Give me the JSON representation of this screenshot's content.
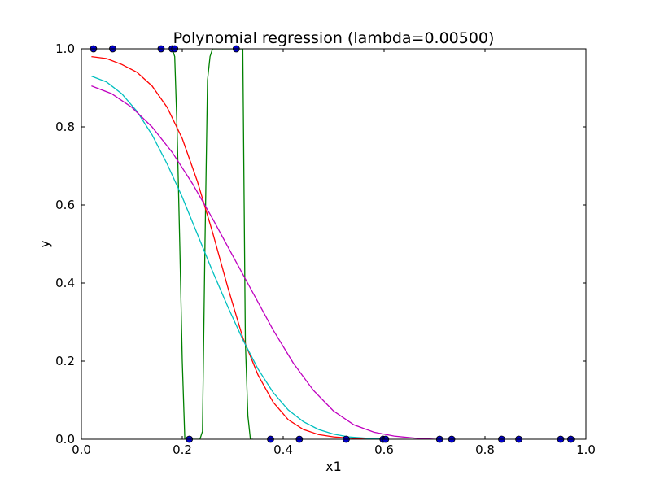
{
  "chart_data": {
    "type": "line",
    "title": "Polynomial regression (lambda=0.00500)",
    "xlabel": "x1",
    "ylabel": "y",
    "xlim": [
      0.0,
      1.0
    ],
    "ylim": [
      0.0,
      1.0
    ],
    "xticks": [
      "0.0",
      "0.2",
      "0.4",
      "0.6",
      "0.8",
      "1.0"
    ],
    "yticks": [
      "0.0",
      "0.2",
      "0.4",
      "0.6",
      "0.8",
      "1.0"
    ],
    "grid": false,
    "legend": "none",
    "scatter": {
      "color": "#0000cc",
      "points": [
        [
          0.024,
          1.0
        ],
        [
          0.062,
          1.0
        ],
        [
          0.158,
          1.0
        ],
        [
          0.18,
          1.0
        ],
        [
          0.185,
          1.0
        ],
        [
          0.307,
          1.0
        ],
        [
          0.214,
          0.0
        ],
        [
          0.375,
          0.0
        ],
        [
          0.432,
          0.0
        ],
        [
          0.525,
          0.0
        ],
        [
          0.598,
          0.0
        ],
        [
          0.603,
          0.0
        ],
        [
          0.71,
          0.0
        ],
        [
          0.734,
          0.0
        ],
        [
          0.833,
          0.0
        ],
        [
          0.867,
          0.0
        ],
        [
          0.95,
          0.0
        ],
        [
          0.97,
          0.0
        ]
      ]
    },
    "series": [
      {
        "color": "#008000",
        "x": [
          0.18,
          0.185,
          0.19,
          0.195,
          0.2,
          0.205,
          0.21,
          0.215,
          0.22,
          0.225,
          0.23,
          0.235,
          0.24,
          0.245,
          0.25,
          0.255,
          0.26,
          0.265,
          0.27,
          0.275,
          0.28,
          0.285,
          0.29,
          0.295,
          0.3,
          0.305,
          0.31,
          0.315,
          0.32,
          0.325,
          0.33,
          0.335,
          0.34
        ],
        "y": [
          1.0,
          0.98,
          0.78,
          0.5,
          0.2,
          0.0,
          0.0,
          0.0,
          0.0,
          0.0,
          0.0,
          0.0,
          0.02,
          0.5,
          0.92,
          0.98,
          1.0,
          1.0,
          1.0,
          1.0,
          1.0,
          1.0,
          1.0,
          1.0,
          1.0,
          1.0,
          1.0,
          1.0,
          1.0,
          0.25,
          0.06,
          0.0,
          0.0
        ]
      },
      {
        "color": "#ff0000",
        "x": [
          0.02,
          0.05,
          0.08,
          0.11,
          0.14,
          0.17,
          0.2,
          0.23,
          0.26,
          0.29,
          0.32,
          0.35,
          0.38,
          0.41,
          0.44,
          0.47,
          0.5,
          0.53,
          0.56,
          0.6
        ],
        "y": [
          0.98,
          0.975,
          0.96,
          0.94,
          0.905,
          0.85,
          0.77,
          0.66,
          0.53,
          0.39,
          0.26,
          0.165,
          0.095,
          0.05,
          0.025,
          0.012,
          0.006,
          0.003,
          0.001,
          0.0
        ]
      },
      {
        "color": "#00bfbf",
        "x": [
          0.02,
          0.05,
          0.08,
          0.11,
          0.14,
          0.17,
          0.2,
          0.23,
          0.26,
          0.29,
          0.32,
          0.35,
          0.38,
          0.41,
          0.44,
          0.47,
          0.5,
          0.53,
          0.56,
          0.6
        ],
        "y": [
          0.93,
          0.915,
          0.885,
          0.84,
          0.78,
          0.705,
          0.62,
          0.525,
          0.43,
          0.34,
          0.255,
          0.18,
          0.12,
          0.075,
          0.045,
          0.025,
          0.013,
          0.006,
          0.003,
          0.0
        ]
      },
      {
        "color": "#bf00bf",
        "x": [
          0.02,
          0.06,
          0.1,
          0.14,
          0.18,
          0.22,
          0.26,
          0.3,
          0.34,
          0.38,
          0.42,
          0.46,
          0.5,
          0.54,
          0.58,
          0.62,
          0.66,
          0.7
        ],
        "y": [
          0.905,
          0.885,
          0.85,
          0.8,
          0.735,
          0.655,
          0.565,
          0.47,
          0.375,
          0.28,
          0.195,
          0.125,
          0.072,
          0.037,
          0.018,
          0.008,
          0.003,
          0.0
        ]
      }
    ]
  }
}
